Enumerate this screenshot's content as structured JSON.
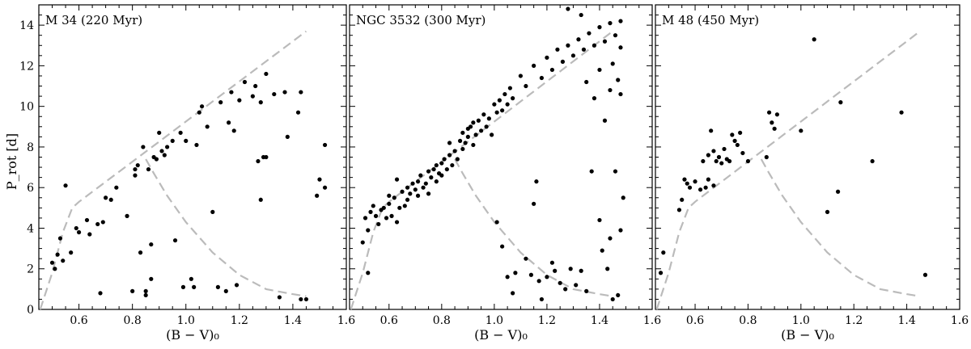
{
  "chart_data": [
    {
      "type": "scatter",
      "title": "M 34 (220 Myr)",
      "xlabel": "(B − V)₀",
      "ylabel": "P_rot [d]",
      "xlim": [
        0.45,
        1.6
      ],
      "ylim": [
        0,
        15
      ],
      "xticks": [
        0.6,
        0.8,
        1.0,
        1.2,
        1.4,
        1.6
      ],
      "xtick_labels": [
        "0.6",
        "0.8",
        "1.0",
        "1.2",
        "1.4",
        "1.6"
      ],
      "yticks": [
        0,
        2,
        4,
        6,
        8,
        10,
        12,
        14
      ],
      "ytick_labels": [
        "0",
        "2",
        "4",
        "6",
        "8",
        "10",
        "12",
        "14"
      ],
      "points": [
        [
          0.5,
          2.3
        ],
        [
          0.51,
          2.0
        ],
        [
          0.52,
          2.7
        ],
        [
          0.53,
          3.5
        ],
        [
          0.54,
          2.4
        ],
        [
          0.55,
          6.1
        ],
        [
          0.57,
          2.8
        ],
        [
          0.59,
          4.0
        ],
        [
          0.6,
          3.8
        ],
        [
          0.63,
          4.4
        ],
        [
          0.64,
          3.7
        ],
        [
          0.67,
          4.2
        ],
        [
          0.68,
          0.8
        ],
        [
          0.69,
          4.3
        ],
        [
          0.7,
          5.5
        ],
        [
          0.72,
          5.4
        ],
        [
          0.74,
          6.0
        ],
        [
          0.78,
          4.6
        ],
        [
          0.8,
          0.9
        ],
        [
          0.81,
          6.6
        ],
        [
          0.81,
          6.9
        ],
        [
          0.82,
          7.1
        ],
        [
          0.83,
          2.8
        ],
        [
          0.84,
          8.0
        ],
        [
          0.85,
          0.7
        ],
        [
          0.85,
          0.9
        ],
        [
          0.86,
          6.9
        ],
        [
          0.87,
          3.2
        ],
        [
          0.87,
          1.5
        ],
        [
          0.88,
          7.5
        ],
        [
          0.89,
          7.4
        ],
        [
          0.9,
          8.7
        ],
        [
          0.91,
          7.8
        ],
        [
          0.92,
          7.6
        ],
        [
          0.93,
          8.0
        ],
        [
          0.95,
          8.3
        ],
        [
          0.96,
          3.4
        ],
        [
          0.98,
          8.7
        ],
        [
          0.99,
          1.1
        ],
        [
          1.0,
          8.3
        ],
        [
          1.02,
          1.5
        ],
        [
          1.03,
          1.1
        ],
        [
          1.04,
          8.1
        ],
        [
          1.05,
          9.7
        ],
        [
          1.06,
          10.0
        ],
        [
          1.08,
          9.0
        ],
        [
          1.1,
          4.8
        ],
        [
          1.12,
          1.1
        ],
        [
          1.13,
          10.2
        ],
        [
          1.15,
          0.9
        ],
        [
          1.16,
          9.2
        ],
        [
          1.17,
          10.7
        ],
        [
          1.18,
          8.8
        ],
        [
          1.19,
          1.2
        ],
        [
          1.2,
          10.3
        ],
        [
          1.22,
          11.2
        ],
        [
          1.25,
          10.5
        ],
        [
          1.26,
          11.0
        ],
        [
          1.27,
          7.3
        ],
        [
          1.28,
          5.4
        ],
        [
          1.28,
          10.2
        ],
        [
          1.29,
          7.5
        ],
        [
          1.3,
          7.5
        ],
        [
          1.3,
          11.6
        ],
        [
          1.33,
          10.6
        ],
        [
          1.35,
          0.6
        ],
        [
          1.37,
          10.7
        ],
        [
          1.38,
          8.5
        ],
        [
          1.42,
          9.7
        ],
        [
          1.43,
          10.7
        ],
        [
          1.43,
          0.5
        ],
        [
          1.45,
          0.5
        ],
        [
          1.49,
          5.6
        ],
        [
          1.5,
          6.4
        ],
        [
          1.52,
          6.0
        ],
        [
          1.52,
          8.1
        ]
      ]
    },
    {
      "type": "scatter",
      "title": "NGC 3532 (300 Myr)",
      "xlabel": "(B − V)₀",
      "xlim": [
        0.45,
        1.6
      ],
      "ylim": [
        0,
        15
      ],
      "xticks": [
        0.6,
        0.8,
        1.0,
        1.2,
        1.4,
        1.6
      ],
      "xtick_labels": [
        "0.6",
        "0.8",
        "1.0",
        "1.2",
        "1.4",
        "1.6"
      ],
      "points": [
        [
          0.5,
          3.3
        ],
        [
          0.51,
          4.5
        ],
        [
          0.52,
          3.9
        ],
        [
          0.52,
          1.8
        ],
        [
          0.53,
          4.8
        ],
        [
          0.54,
          5.1
        ],
        [
          0.55,
          4.6
        ],
        [
          0.56,
          4.2
        ],
        [
          0.57,
          4.9
        ],
        [
          0.58,
          5.0
        ],
        [
          0.59,
          4.5
        ],
        [
          0.6,
          5.6
        ],
        [
          0.6,
          5.2
        ],
        [
          0.61,
          4.6
        ],
        [
          0.62,
          5.5
        ],
        [
          0.63,
          4.3
        ],
        [
          0.63,
          6.4
        ],
        [
          0.64,
          5.0
        ],
        [
          0.65,
          5.8
        ],
        [
          0.66,
          5.1
        ],
        [
          0.67,
          6.0
        ],
        [
          0.67,
          5.4
        ],
        [
          0.68,
          5.7
        ],
        [
          0.69,
          6.2
        ],
        [
          0.7,
          5.9
        ],
        [
          0.71,
          6.3
        ],
        [
          0.71,
          5.6
        ],
        [
          0.72,
          6.6
        ],
        [
          0.73,
          6.0
        ],
        [
          0.74,
          6.2
        ],
        [
          0.75,
          6.8
        ],
        [
          0.75,
          5.7
        ],
        [
          0.76,
          6.5
        ],
        [
          0.77,
          6.9
        ],
        [
          0.78,
          6.3
        ],
        [
          0.78,
          7.1
        ],
        [
          0.79,
          6.7
        ],
        [
          0.8,
          7.2
        ],
        [
          0.8,
          6.6
        ],
        [
          0.81,
          7.4
        ],
        [
          0.82,
          6.9
        ],
        [
          0.83,
          7.6
        ],
        [
          0.83,
          8.2
        ],
        [
          0.84,
          7.1
        ],
        [
          0.85,
          7.8
        ],
        [
          0.86,
          7.4
        ],
        [
          0.87,
          8.3
        ],
        [
          0.88,
          7.9
        ],
        [
          0.88,
          8.7
        ],
        [
          0.89,
          8.2
        ],
        [
          0.9,
          8.9
        ],
        [
          0.9,
          8.5
        ],
        [
          0.91,
          9.0
        ],
        [
          0.92,
          8.1
        ],
        [
          0.92,
          9.2
        ],
        [
          0.93,
          8.6
        ],
        [
          0.94,
          9.3
        ],
        [
          0.95,
          8.8
        ],
        [
          0.96,
          9.6
        ],
        [
          0.97,
          9.0
        ],
        [
          0.98,
          9.4
        ],
        [
          0.99,
          8.6
        ],
        [
          1.0,
          10.1
        ],
        [
          1.01,
          9.7
        ],
        [
          1.02,
          10.3
        ],
        [
          1.03,
          9.8
        ],
        [
          1.04,
          10.6
        ],
        [
          1.05,
          10.1
        ],
        [
          1.06,
          10.9
        ],
        [
          1.07,
          10.4
        ],
        [
          1.1,
          11.5
        ],
        [
          1.12,
          11.0
        ],
        [
          1.15,
          12.0
        ],
        [
          1.18,
          11.4
        ],
        [
          1.2,
          12.4
        ],
        [
          1.22,
          11.8
        ],
        [
          1.24,
          12.8
        ],
        [
          1.26,
          12.2
        ],
        [
          1.28,
          13.0
        ],
        [
          1.3,
          12.5
        ],
        [
          1.32,
          13.3
        ],
        [
          1.34,
          12.8
        ],
        [
          1.36,
          13.6
        ],
        [
          1.38,
          13.0
        ],
        [
          1.4,
          13.9
        ],
        [
          1.42,
          13.2
        ],
        [
          1.44,
          14.1
        ],
        [
          1.46,
          13.5
        ],
        [
          1.48,
          14.2
        ],
        [
          1.28,
          14.8
        ],
        [
          1.33,
          14.5
        ],
        [
          1.35,
          11.2
        ],
        [
          1.38,
          10.4
        ],
        [
          1.4,
          11.8
        ],
        [
          1.42,
          9.3
        ],
        [
          1.44,
          10.8
        ],
        [
          1.45,
          12.1
        ],
        [
          1.47,
          11.3
        ],
        [
          1.48,
          10.6
        ],
        [
          1.48,
          12.9
        ],
        [
          1.16,
          6.3
        ],
        [
          1.15,
          5.2
        ],
        [
          1.12,
          2.5
        ],
        [
          1.14,
          1.7
        ],
        [
          1.17,
          1.4
        ],
        [
          1.2,
          1.6
        ],
        [
          1.22,
          2.3
        ],
        [
          1.23,
          1.9
        ],
        [
          1.25,
          1.3
        ],
        [
          1.27,
          1.0
        ],
        [
          1.29,
          2.0
        ],
        [
          1.31,
          1.2
        ],
        [
          1.33,
          1.9
        ],
        [
          1.35,
          0.9
        ],
        [
          1.37,
          6.8
        ],
        [
          1.4,
          4.4
        ],
        [
          1.41,
          2.9
        ],
        [
          1.43,
          2.0
        ],
        [
          1.44,
          3.5
        ],
        [
          1.45,
          0.5
        ],
        [
          1.46,
          6.8
        ],
        [
          1.47,
          0.7
        ],
        [
          1.48,
          3.9
        ],
        [
          1.49,
          5.5
        ],
        [
          1.08,
          1.8
        ],
        [
          1.03,
          3.1
        ],
        [
          1.01,
          4.3
        ],
        [
          1.05,
          1.6
        ],
        [
          1.07,
          0.8
        ],
        [
          1.18,
          0.5
        ]
      ]
    },
    {
      "type": "scatter",
      "title": "M 48 (450 Myr)",
      "xlabel": "(B − V)₀",
      "xlim": [
        0.45,
        1.6
      ],
      "ylim": [
        0,
        15
      ],
      "xticks": [
        0.6,
        0.8,
        1.0,
        1.2,
        1.4,
        1.6
      ],
      "xtick_labels": [
        "0.6",
        "0.8",
        "1.0",
        "1.2",
        "1.4",
        "1.6"
      ],
      "points": [
        [
          0.47,
          1.8
        ],
        [
          0.48,
          2.8
        ],
        [
          0.54,
          4.9
        ],
        [
          0.55,
          5.4
        ],
        [
          0.56,
          6.4
        ],
        [
          0.57,
          6.2
        ],
        [
          0.58,
          6.0
        ],
        [
          0.6,
          6.3
        ],
        [
          0.62,
          5.9
        ],
        [
          0.63,
          7.3
        ],
        [
          0.64,
          6.0
        ],
        [
          0.65,
          7.6
        ],
        [
          0.65,
          6.4
        ],
        [
          0.66,
          8.8
        ],
        [
          0.67,
          7.8
        ],
        [
          0.67,
          6.1
        ],
        [
          0.68,
          7.3
        ],
        [
          0.69,
          7.5
        ],
        [
          0.7,
          7.2
        ],
        [
          0.71,
          7.9
        ],
        [
          0.72,
          7.4
        ],
        [
          0.73,
          7.3
        ],
        [
          0.74,
          8.6
        ],
        [
          0.75,
          8.3
        ],
        [
          0.76,
          8.1
        ],
        [
          0.77,
          8.7
        ],
        [
          0.78,
          7.7
        ],
        [
          0.8,
          7.3
        ],
        [
          0.87,
          7.5
        ],
        [
          0.88,
          9.7
        ],
        [
          0.89,
          9.2
        ],
        [
          0.9,
          8.9
        ],
        [
          0.91,
          9.6
        ],
        [
          1.0,
          8.8
        ],
        [
          1.05,
          13.3
        ],
        [
          1.1,
          4.8
        ],
        [
          1.14,
          5.8
        ],
        [
          1.15,
          10.2
        ],
        [
          1.27,
          7.3
        ],
        [
          1.38,
          9.7
        ],
        [
          1.47,
          1.7
        ]
      ]
    }
  ]
}
